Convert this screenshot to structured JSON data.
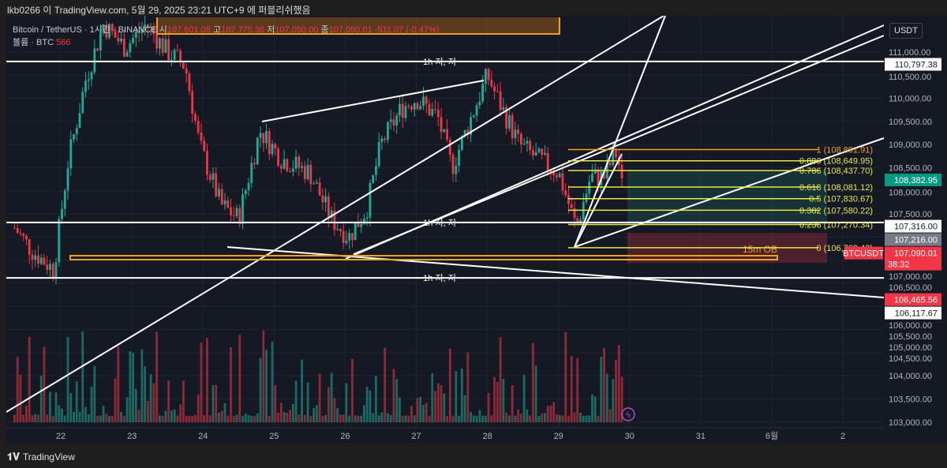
{
  "header": {
    "published": "lkb0266 이 TradingView.com, 5월 29, 2025 23:21 UTC+9 에 퍼블리쉬했음"
  },
  "legend": {
    "symbol": "Bitcoin / TetherUS · 1시간 · BINANCE",
    "open_label": "시",
    "open": "107,601.08",
    "high_label": "고",
    "high": "107,775.36",
    "low_label": "저",
    "low": "107,050.00",
    "close_label": "종",
    "close": "107,090.01",
    "change": "-511.07 (-0.47%)",
    "volume_label": "볼륨 · BTC",
    "volume": "566"
  },
  "currency": "USDT",
  "footer": {
    "brand": "TradingView"
  },
  "colors": {
    "up": "#22ab94",
    "down": "#f23645",
    "fib": "#e8e84a",
    "fib_top": "#f0a020",
    "ob": "#f0a020"
  },
  "chart_data": {
    "type": "candlestick",
    "symbol": "BTCUSDT",
    "ylim": [
      103000,
      111500
    ],
    "y_ticks": [
      "111,000.00",
      "110,500.00",
      "110,000.00",
      "109,500.00",
      "109,000.00",
      "108,500.00",
      "108,000.00",
      "107,500.00",
      "107,000.00",
      "106,500.00",
      "106,000.00",
      "105,500.00",
      "105,000.00",
      "104,500.00",
      "104,000.00",
      "103,500.00",
      "103,000.00"
    ],
    "y_tick_values": [
      111000,
      110500,
      110000,
      109500,
      109000,
      108500,
      108000,
      107500,
      107000,
      106500,
      106000,
      105500,
      105000,
      104500,
      104000,
      103500,
      103000
    ],
    "x_ticks": [
      {
        "day": 22,
        "label": "22"
      },
      {
        "day": 23,
        "label": "23"
      },
      {
        "day": 24,
        "label": "24"
      },
      {
        "day": 25,
        "label": "25"
      },
      {
        "day": 26,
        "label": "26"
      },
      {
        "day": 27,
        "label": "27"
      },
      {
        "day": 28,
        "label": "28"
      },
      {
        "day": 29,
        "label": "29"
      },
      {
        "day": 30,
        "label": "30"
      },
      {
        "day": 31,
        "label": "31"
      },
      {
        "day": 32,
        "label": "6월"
      },
      {
        "day": 33,
        "label": "2"
      }
    ],
    "price_path": [
      [
        21.35,
        107200
      ],
      [
        21.6,
        106700
      ],
      [
        21.9,
        106300
      ],
      [
        22.1,
        108600
      ],
      [
        22.35,
        110400
      ],
      [
        22.6,
        111600
      ],
      [
        22.9,
        111100
      ],
      [
        23.2,
        111600
      ],
      [
        23.5,
        111000
      ],
      [
        23.75,
        110700
      ],
      [
        23.95,
        109000
      ],
      [
        24.25,
        107700
      ],
      [
        24.5,
        107400
      ],
      [
        24.8,
        109300
      ],
      [
        25.1,
        108700
      ],
      [
        25.5,
        108400
      ],
      [
        25.8,
        107400
      ],
      [
        26.05,
        107000
      ],
      [
        26.3,
        107600
      ],
      [
        26.5,
        109000
      ],
      [
        26.8,
        109800
      ],
      [
        27.0,
        110000
      ],
      [
        27.3,
        109600
      ],
      [
        27.5,
        108500
      ],
      [
        27.8,
        109700
      ],
      [
        28.0,
        110500
      ],
      [
        28.2,
        109800
      ],
      [
        28.45,
        109000
      ],
      [
        28.7,
        108700
      ],
      [
        29.0,
        108400
      ],
      [
        29.25,
        107200
      ],
      [
        29.45,
        108300
      ],
      [
        29.65,
        108300
      ],
      [
        29.8,
        108850
      ],
      [
        29.88,
        108400
      ],
      [
        29.93,
        107090
      ]
    ],
    "horizontal_levels": [
      {
        "price": 110797.38,
        "label": "1h 지, 저",
        "axis": "110,797.38"
      },
      {
        "price": 107316.0,
        "label": "1h 지, 저",
        "axis": "107,316.00"
      },
      {
        "price": 106117.67,
        "label": "1h 지, 저",
        "axis": "106,117.67"
      }
    ],
    "fib_levels": [
      {
        "ratio": "1",
        "price": "108,891.91",
        "v": 108891.91
      },
      {
        "ratio": "0.886",
        "price": "108,649.95",
        "v": 108649.95
      },
      {
        "ratio": "0.786",
        "price": "108,437.70",
        "v": 108437.7
      },
      {
        "ratio": "0.618",
        "price": "108,081.12",
        "v": 108081.12
      },
      {
        "ratio": "0.5",
        "price": "107,830.67",
        "v": 107830.67
      },
      {
        "ratio": "0.382",
        "price": "107,580.22",
        "v": 107580.22
      },
      {
        "ratio": "0.236",
        "price": "107,270.34",
        "v": 107270.34
      },
      {
        "ratio": "0",
        "price": "106,769.43",
        "v": 106769.43
      }
    ],
    "price_labels": {
      "current": "107,090.01",
      "countdown": "38:32",
      "target": "108,382.95",
      "prev": "107,216.00",
      "ob": "106,465.56",
      "symbol_tag": "BTCUSDT"
    },
    "annotations": {
      "order_block": "15m OB"
    }
  }
}
